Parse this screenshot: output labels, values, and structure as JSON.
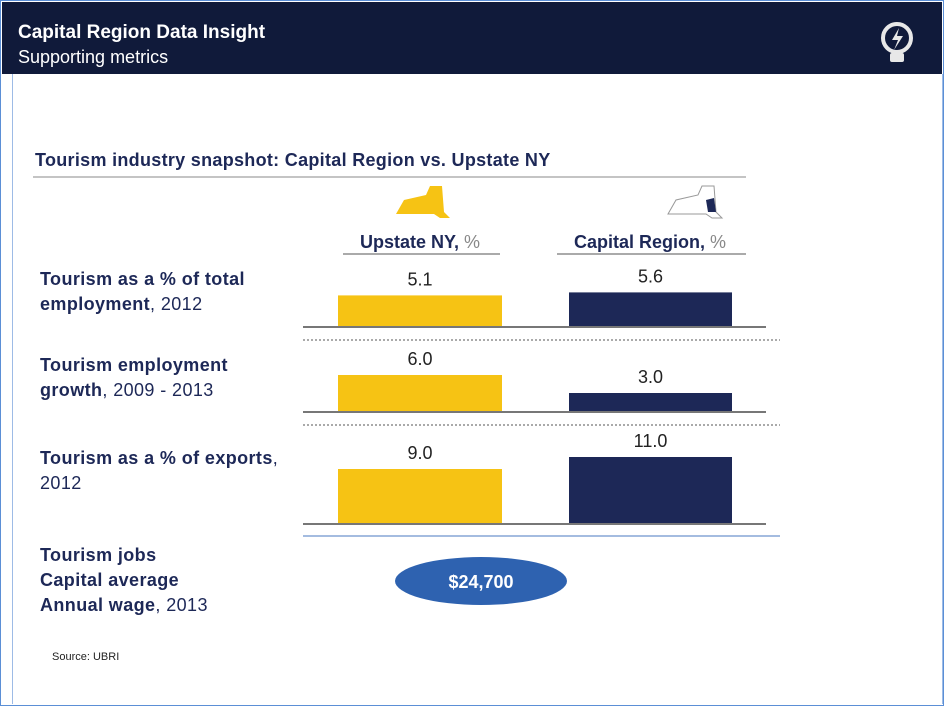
{
  "header": {
    "title": "Capital Region Data Insight",
    "subtitle": "Supporting metrics"
  },
  "snapshot": {
    "title": "Tourism industry snapshot: Capital Region vs. Upstate NY",
    "columns": [
      {
        "name": "Upstate NY,",
        "unit": "%",
        "color": "#f6c314"
      },
      {
        "name": "Capital Region,",
        "unit": "%",
        "color": "#1d2857"
      }
    ],
    "rows": [
      {
        "label_bold": "Tourism as a % of total employment",
        "label_rest": ", 2012",
        "values": [
          5.1,
          5.6
        ],
        "value_labels": [
          "5.1",
          "5.6"
        ]
      },
      {
        "label_bold": "Tourism employment growth",
        "label_rest": ", 2009 - 2013",
        "values": [
          6.0,
          3.0
        ],
        "value_labels": [
          "6.0",
          "3.0"
        ]
      },
      {
        "label_bold": "Tourism as a % of exports",
        "label_rest": ", 2012",
        "values": [
          9.0,
          11.0
        ],
        "value_labels": [
          "9.0",
          "11.0"
        ]
      }
    ]
  },
  "wage": {
    "label_lines": [
      "Tourism jobs",
      "Capital average",
      "Annual wage"
    ],
    "label_rest": ", 2013",
    "value": "$24,700"
  },
  "source": "Source: UBRI"
}
